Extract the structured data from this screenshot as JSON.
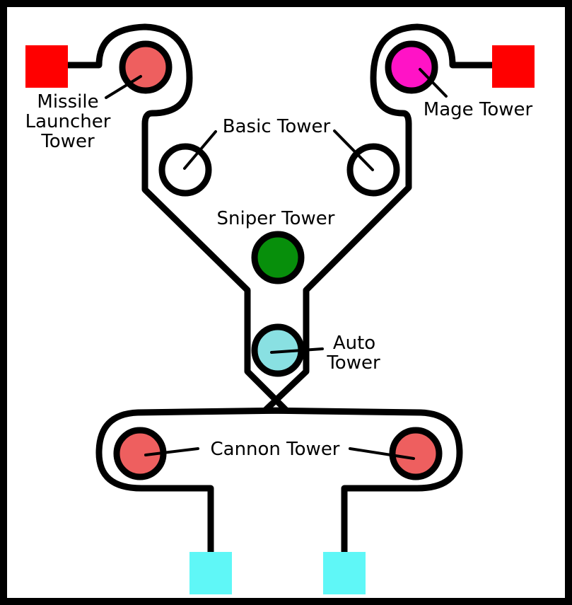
{
  "colors": {
    "frame": "#000000",
    "background": "#ffffff",
    "path": "#000000",
    "spawn_red": "#ff0000",
    "exit_cyan": "#5ff7f7",
    "missile": "#ee5f5f",
    "mage": "#ff13c6",
    "basic": "#ffffff",
    "sniper": "#078f0b",
    "auto": "#89e0e2",
    "cannon": "#ee5f5f"
  },
  "labels": {
    "missile_line1": "Missile",
    "missile_line2": "Launcher",
    "missile_line3": "Tower",
    "mage": "Mage Tower",
    "basic": "Basic Tower",
    "sniper": "Sniper Tower",
    "auto_line1": "Auto",
    "auto_line2": "Tower",
    "cannon": "Cannon Tower"
  }
}
